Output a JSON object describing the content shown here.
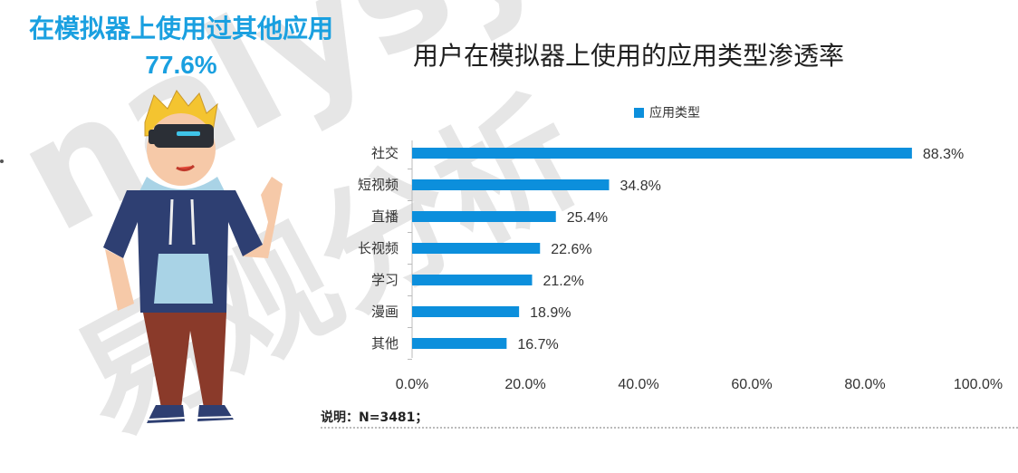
{
  "watermark": {
    "latin": "nalysys",
    "cjk": "易观分析"
  },
  "hero": {
    "title": "在模拟器上使用过其他应用",
    "value": "77.6%"
  },
  "chart_data": {
    "type": "bar",
    "orientation": "horizontal",
    "title": "用户在模拟器上使用的应用类型渗透率",
    "categories": [
      "社交",
      "短视频",
      "直播",
      "长视频",
      "学习",
      "漫画",
      "其他"
    ],
    "series": [
      {
        "name": "应用类型",
        "values": [
          88.3,
          34.8,
          25.4,
          22.6,
          21.2,
          18.9,
          16.7
        ]
      }
    ],
    "value_labels": [
      "88.3%",
      "34.8%",
      "25.4%",
      "22.6%",
      "21.2%",
      "18.9%",
      "16.7%"
    ],
    "xlim": [
      0,
      100
    ],
    "x_ticks": [
      "0.0%",
      "20.0%",
      "40.0%",
      "60.0%",
      "80.0%",
      "100.0%"
    ],
    "legend_position": "top",
    "grid": false,
    "bar_color": "#0c8fdc"
  },
  "note": "说明：N=3481；"
}
